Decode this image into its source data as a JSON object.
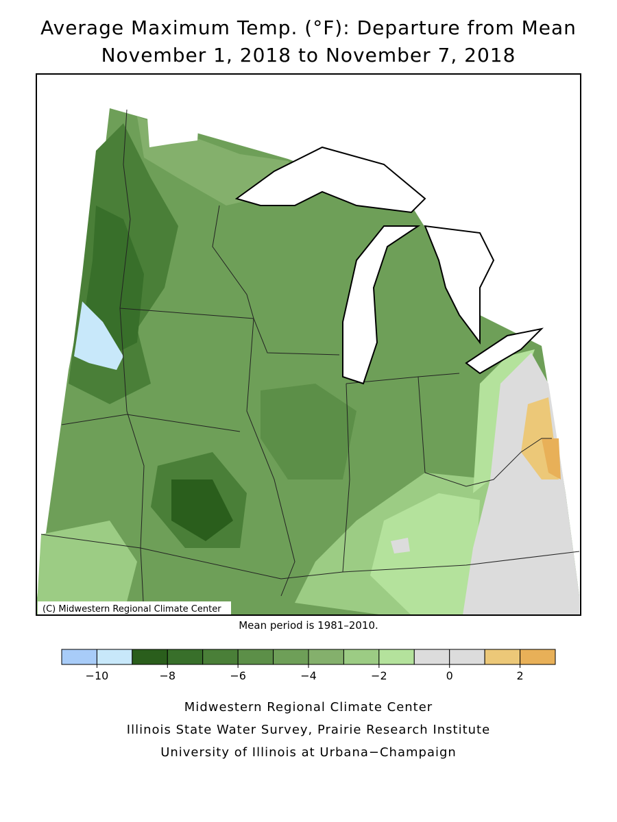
{
  "header": {
    "title_line_1": "Average Maximum Temp. (°F): Departure from Mean",
    "title_line_2": "November 1, 2018 to November 7, 2018"
  },
  "map": {
    "copyright": "(C) Midwestern Regional Climate Center",
    "note": "Mean period is 1981–2010."
  },
  "legend": {
    "bounds": [
      -11,
      -10,
      -9,
      -8,
      -7,
      -6,
      -5,
      -4,
      -3,
      -2,
      -1,
      0,
      1,
      2,
      3
    ],
    "colors": [
      "#a8ccf8",
      "#c8e8fa",
      "#2a5e1c",
      "#386f2a",
      "#4a7f38",
      "#5c8f48",
      "#6e9f58",
      "#84b06c",
      "#9ccc84",
      "#b4e29c",
      "#dcdcdc",
      "#dcdcdc",
      "#ecc878",
      "#e8b058"
    ],
    "ticks": [
      {
        "value": -10,
        "label": "−10"
      },
      {
        "value": -8,
        "label": "−8"
      },
      {
        "value": -6,
        "label": "−6"
      },
      {
        "value": -4,
        "label": "−4"
      },
      {
        "value": -2,
        "label": "−2"
      },
      0,
      2
    ]
  },
  "footer": {
    "line_1": "Midwestern Regional Climate Center",
    "line_2": "Illinois State Water Survey, Prairie Research Institute",
    "line_3": "University of Illinois at Urbana−Champaign"
  }
}
